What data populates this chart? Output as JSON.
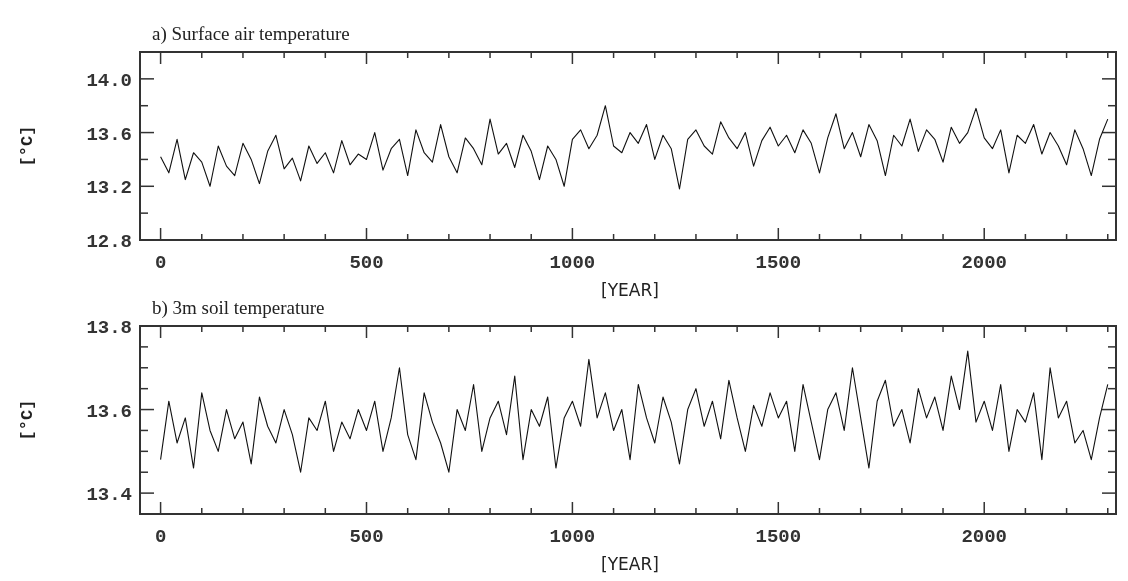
{
  "chart_data": [
    {
      "type": "line",
      "title": "a) Surface air temperature",
      "xlabel": "[YEAR]",
      "ylabel": "[°C]",
      "xlim": [
        -50,
        2320
      ],
      "ylim": [
        12.8,
        14.2
      ],
      "xticks": [
        0,
        {
          "value": 100,
          "label": null
        },
        {
          "value": 200,
          "label": null
        },
        {
          "value": 300,
          "label": null
        },
        {
          "value": 400,
          "label": null
        },
        500,
        {
          "value": 600,
          "label": null
        },
        {
          "value": 700,
          "label": null
        },
        {
          "value": 800,
          "label": null
        },
        {
          "value": 900,
          "label": null
        },
        1000,
        {
          "value": 1100,
          "label": null
        },
        {
          "value": 1200,
          "label": null
        },
        {
          "value": 1300,
          "label": null
        },
        {
          "value": 1400,
          "label": null
        },
        1500,
        {
          "value": 1600,
          "label": null
        },
        {
          "value": 1700,
          "label": null
        },
        {
          "value": 1800,
          "label": null
        },
        {
          "value": 1900,
          "label": null
        },
        2000,
        {
          "value": 2100,
          "label": null
        },
        {
          "value": 2200,
          "label": null
        },
        {
          "value": 2300,
          "label": null
        }
      ],
      "yticks": [
        {
          "value": 12.8,
          "label": "12.8"
        },
        {
          "value": 13.0,
          "label": null
        },
        {
          "value": 13.2,
          "label": "13.2"
        },
        {
          "value": 13.4,
          "label": null
        },
        {
          "value": 13.6,
          "label": "13.6"
        },
        {
          "value": 13.8,
          "label": null
        },
        {
          "value": 14.0,
          "label": "14.0"
        }
      ],
      "grid": false,
      "marker": "none",
      "line_style": "solid",
      "series": [
        {
          "color": "#111111",
          "x": [
            0,
            20,
            40,
            60,
            80,
            100,
            120,
            140,
            160,
            180,
            200,
            220,
            240,
            260,
            280,
            300,
            320,
            340,
            360,
            380,
            400,
            420,
            440,
            460,
            480,
            500,
            520,
            540,
            560,
            580,
            600,
            620,
            640,
            660,
            680,
            700,
            720,
            740,
            760,
            780,
            800,
            820,
            840,
            860,
            880,
            900,
            920,
            940,
            960,
            980,
            1000,
            1020,
            1040,
            1060,
            1080,
            1100,
            1120,
            1140,
            1160,
            1180,
            1200,
            1220,
            1240,
            1260,
            1280,
            1300,
            1320,
            1340,
            1360,
            1380,
            1400,
            1420,
            1440,
            1460,
            1480,
            1500,
            1520,
            1540,
            1560,
            1580,
            1600,
            1620,
            1640,
            1660,
            1680,
            1700,
            1720,
            1740,
            1760,
            1780,
            1800,
            1820,
            1840,
            1860,
            1880,
            1900,
            1920,
            1940,
            1960,
            1980,
            2000,
            2020,
            2040,
            2060,
            2080,
            2100,
            2120,
            2140,
            2160,
            2180,
            2200,
            2220,
            2240,
            2260,
            2280,
            2300
          ],
          "values": [
            13.42,
            13.3,
            13.55,
            13.25,
            13.45,
            13.38,
            13.2,
            13.5,
            13.35,
            13.28,
            13.52,
            13.4,
            13.22,
            13.46,
            13.58,
            13.33,
            13.41,
            13.24,
            13.5,
            13.37,
            13.45,
            13.3,
            13.54,
            13.36,
            13.44,
            13.4,
            13.6,
            13.32,
            13.48,
            13.55,
            13.28,
            13.62,
            13.45,
            13.38,
            13.66,
            13.42,
            13.3,
            13.56,
            13.48,
            13.36,
            13.7,
            13.44,
            13.52,
            13.34,
            13.58,
            13.46,
            13.25,
            13.5,
            13.4,
            13.2,
            13.55,
            13.62,
            13.48,
            13.58,
            13.8,
            13.5,
            13.45,
            13.6,
            13.52,
            13.66,
            13.4,
            13.58,
            13.48,
            13.18,
            13.55,
            13.62,
            13.5,
            13.44,
            13.68,
            13.56,
            13.48,
            13.6,
            13.35,
            13.54,
            13.64,
            13.5,
            13.58,
            13.45,
            13.62,
            13.52,
            13.3,
            13.56,
            13.74,
            13.48,
            13.6,
            13.42,
            13.66,
            13.54,
            13.28,
            13.58,
            13.5,
            13.7,
            13.46,
            13.62,
            13.55,
            13.38,
            13.64,
            13.52,
            13.6,
            13.78,
            13.56,
            13.48,
            13.62,
            13.3,
            13.58,
            13.52,
            13.66,
            13.44,
            13.6,
            13.5,
            13.36,
            13.62,
            13.48,
            13.28,
            13.55,
            13.7
          ]
        }
      ]
    },
    {
      "type": "line",
      "title": "b) 3m soil temperature",
      "xlabel": "[YEAR]",
      "ylabel": "[°C]",
      "xlim": [
        -50,
        2320
      ],
      "ylim": [
        13.35,
        13.8
      ],
      "xticks": [
        0,
        {
          "value": 100,
          "label": null
        },
        {
          "value": 200,
          "label": null
        },
        {
          "value": 300,
          "label": null
        },
        {
          "value": 400,
          "label": null
        },
        500,
        {
          "value": 600,
          "label": null
        },
        {
          "value": 700,
          "label": null
        },
        {
          "value": 800,
          "label": null
        },
        {
          "value": 900,
          "label": null
        },
        1000,
        {
          "value": 1100,
          "label": null
        },
        {
          "value": 1200,
          "label": null
        },
        {
          "value": 1300,
          "label": null
        },
        {
          "value": 1400,
          "label": null
        },
        1500,
        {
          "value": 1600,
          "label": null
        },
        {
          "value": 1700,
          "label": null
        },
        {
          "value": 1800,
          "label": null
        },
        {
          "value": 1900,
          "label": null
        },
        2000,
        {
          "value": 2100,
          "label": null
        },
        {
          "value": 2200,
          "label": null
        },
        {
          "value": 2300,
          "label": null
        }
      ],
      "yticks": [
        {
          "value": 13.4,
          "label": "13.4"
        },
        {
          "value": 13.45,
          "label": null
        },
        {
          "value": 13.5,
          "label": null
        },
        {
          "value": 13.55,
          "label": null
        },
        {
          "value": 13.6,
          "label": "13.6"
        },
        {
          "value": 13.65,
          "label": null
        },
        {
          "value": 13.7,
          "label": null
        },
        {
          "value": 13.75,
          "label": null
        },
        {
          "value": 13.8,
          "label": "13.8"
        }
      ],
      "grid": false,
      "marker": "none",
      "line_style": "solid",
      "series": [
        {
          "color": "#111111",
          "x": [
            0,
            20,
            40,
            60,
            80,
            100,
            120,
            140,
            160,
            180,
            200,
            220,
            240,
            260,
            280,
            300,
            320,
            340,
            360,
            380,
            400,
            420,
            440,
            460,
            480,
            500,
            520,
            540,
            560,
            580,
            600,
            620,
            640,
            660,
            680,
            700,
            720,
            740,
            760,
            780,
            800,
            820,
            840,
            860,
            880,
            900,
            920,
            940,
            960,
            980,
            1000,
            1020,
            1040,
            1060,
            1080,
            1100,
            1120,
            1140,
            1160,
            1180,
            1200,
            1220,
            1240,
            1260,
            1280,
            1300,
            1320,
            1340,
            1360,
            1380,
            1400,
            1420,
            1440,
            1460,
            1480,
            1500,
            1520,
            1540,
            1560,
            1580,
            1600,
            1620,
            1640,
            1660,
            1680,
            1700,
            1720,
            1740,
            1760,
            1780,
            1800,
            1820,
            1840,
            1860,
            1880,
            1900,
            1920,
            1940,
            1960,
            1980,
            2000,
            2020,
            2040,
            2060,
            2080,
            2100,
            2120,
            2140,
            2160,
            2180,
            2200,
            2220,
            2240,
            2260,
            2280,
            2300
          ],
          "values": [
            13.48,
            13.62,
            13.52,
            13.58,
            13.46,
            13.64,
            13.55,
            13.5,
            13.6,
            13.53,
            13.57,
            13.47,
            13.63,
            13.56,
            13.52,
            13.6,
            13.54,
            13.45,
            13.58,
            13.55,
            13.62,
            13.5,
            13.57,
            13.53,
            13.6,
            13.55,
            13.62,
            13.5,
            13.58,
            13.7,
            13.54,
            13.48,
            13.64,
            13.57,
            13.52,
            13.45,
            13.6,
            13.55,
            13.66,
            13.5,
            13.58,
            13.62,
            13.54,
            13.68,
            13.48,
            13.6,
            13.56,
            13.63,
            13.46,
            13.58,
            13.62,
            13.56,
            13.72,
            13.58,
            13.64,
            13.55,
            13.6,
            13.48,
            13.66,
            13.58,
            13.52,
            13.63,
            13.57,
            13.47,
            13.6,
            13.65,
            13.56,
            13.62,
            13.53,
            13.67,
            13.58,
            13.5,
            13.61,
            13.56,
            13.64,
            13.58,
            13.62,
            13.5,
            13.66,
            13.57,
            13.48,
            13.6,
            13.64,
            13.55,
            13.7,
            13.58,
            13.46,
            13.62,
            13.67,
            13.56,
            13.6,
            13.52,
            13.65,
            13.58,
            13.63,
            13.55,
            13.68,
            13.6,
            13.74,
            13.57,
            13.62,
            13.55,
            13.66,
            13.5,
            13.6,
            13.57,
            13.64,
            13.48,
            13.7,
            13.58,
            13.62,
            13.52,
            13.55,
            13.48,
            13.58,
            13.66
          ]
        }
      ]
    }
  ]
}
